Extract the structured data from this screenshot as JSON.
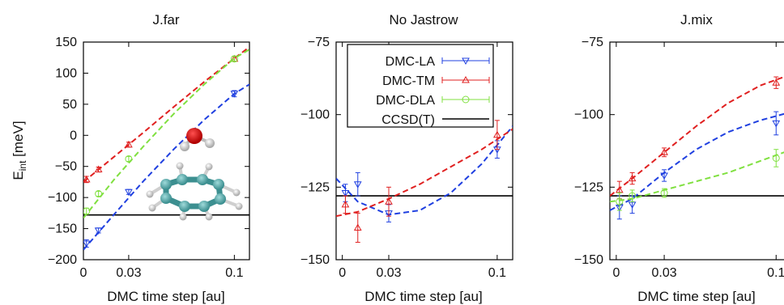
{
  "colors": {
    "la": "#2040e0",
    "tm": "#e02020",
    "dla": "#80e040",
    "ccsd": "#000000"
  },
  "chart_data": [
    {
      "type": "line",
      "title": "J.far",
      "xlabel": "DMC time step [au]",
      "ylabel_main": "E",
      "ylabel_sub": "int",
      "ylabel_unit": " [meV]",
      "xlim": [
        0,
        0.11
      ],
      "ylim": [
        -200,
        150
      ],
      "xticks": [
        0,
        0.03,
        0.1
      ],
      "xtick_labels": [
        "0",
        "0.03",
        "0.1"
      ],
      "yticks": [
        -200,
        -150,
        -100,
        -50,
        0,
        50,
        100,
        150
      ],
      "ytick_labels": [
        "-200",
        "-150",
        "-100",
        "-50",
        "0",
        "50",
        "100",
        "150"
      ],
      "reference": -128,
      "inset": "water-benzene-molecule",
      "series": [
        {
          "key": "la",
          "points": [
            {
              "x": 0.002,
              "y": -174,
              "err": 6
            },
            {
              "x": 0.01,
              "y": -153,
              "err": 4
            },
            {
              "x": 0.03,
              "y": -91,
              "err": 4
            },
            {
              "x": 0.1,
              "y": 67,
              "err": 5
            }
          ],
          "fit": [
            [
              0,
              -184
            ],
            [
              0.02,
              -128
            ],
            [
              0.04,
              -73
            ],
            [
              0.06,
              -22
            ],
            [
              0.08,
              25
            ],
            [
              0.1,
              67
            ],
            [
              0.11,
              82
            ]
          ]
        },
        {
          "key": "tm",
          "points": [
            {
              "x": 0.002,
              "y": -71,
              "err": 5
            },
            {
              "x": 0.01,
              "y": -55,
              "err": 4
            },
            {
              "x": 0.03,
              "y": -15,
              "err": 4
            },
            {
              "x": 0.1,
              "y": 123,
              "err": 4
            }
          ],
          "fit": [
            [
              0,
              -75
            ],
            [
              0.02,
              -35
            ],
            [
              0.04,
              5
            ],
            [
              0.06,
              46
            ],
            [
              0.08,
              86
            ],
            [
              0.1,
              124
            ],
            [
              0.11,
              142
            ]
          ]
        },
        {
          "key": "dla",
          "points": [
            {
              "x": 0.002,
              "y": -122,
              "err": 5
            },
            {
              "x": 0.01,
              "y": -94,
              "err": 4
            },
            {
              "x": 0.03,
              "y": -38,
              "err": 4
            },
            {
              "x": 0.1,
              "y": 123,
              "err": 4
            }
          ],
          "fit": [
            [
              0,
              -133
            ],
            [
              0.02,
              -72
            ],
            [
              0.04,
              -17
            ],
            [
              0.06,
              35
            ],
            [
              0.08,
              82
            ],
            [
              0.1,
              124
            ],
            [
              0.11,
              138
            ]
          ]
        }
      ]
    },
    {
      "type": "line",
      "title": "No Jastrow",
      "xlabel": "DMC time step [au]",
      "xlim": [
        -0.004,
        0.11
      ],
      "ylim": [
        -150,
        -75
      ],
      "xticks": [
        0,
        0.03,
        0.1
      ],
      "xtick_labels": [
        "0",
        "0.03",
        "0.1"
      ],
      "yticks": [
        -150,
        -125,
        -100,
        -75
      ],
      "ytick_labels": [
        "-150",
        "-125",
        "-100",
        "-75"
      ],
      "reference": -128,
      "legend": {
        "position": "top-left",
        "entries": [
          {
            "key": "la",
            "label": "DMC-LA"
          },
          {
            "key": "tm",
            "label": "DMC-TM"
          },
          {
            "key": "dla",
            "label": "DMC-DLA"
          },
          {
            "key": "ccsd",
            "label": "CCSD(T)"
          }
        ]
      },
      "series": [
        {
          "key": "la",
          "points": [
            {
              "x": 0.002,
              "y": -127,
              "err": 3
            },
            {
              "x": 0.01,
              "y": -124,
              "err": 4
            },
            {
              "x": 0.03,
              "y": -134,
              "err": 3
            },
            {
              "x": 0.1,
              "y": -112,
              "err": 3
            }
          ],
          "fit": [
            [
              -0.004,
              -122
            ],
            [
              0.01,
              -130
            ],
            [
              0.03,
              -134.5
            ],
            [
              0.05,
              -133
            ],
            [
              0.07,
              -127
            ],
            [
              0.09,
              -117
            ],
            [
              0.11,
              -104
            ]
          ]
        },
        {
          "key": "tm",
          "points": [
            {
              "x": 0.002,
              "y": -131,
              "err": 3
            },
            {
              "x": 0.01,
              "y": -139,
              "err": 5
            },
            {
              "x": 0.03,
              "y": -130,
              "err": 5
            },
            {
              "x": 0.1,
              "y": -107,
              "err": 5
            }
          ],
          "fit": [
            [
              -0.004,
              -135
            ],
            [
              0.01,
              -133.5
            ],
            [
              0.03,
              -129
            ],
            [
              0.05,
              -124
            ],
            [
              0.07,
              -118
            ],
            [
              0.09,
              -112
            ],
            [
              0.11,
              -105
            ]
          ]
        }
      ]
    },
    {
      "type": "line",
      "title": "J.mix",
      "xlabel": "DMC time step [au]",
      "xlim": [
        -0.004,
        0.11
      ],
      "ylim": [
        -150,
        -75
      ],
      "xticks": [
        0,
        0.03,
        0.1
      ],
      "xtick_labels": [
        "0",
        "0.03",
        "0.1"
      ],
      "yticks": [
        -150,
        -125,
        -100,
        -75
      ],
      "ytick_labels": [
        "-150",
        "-125",
        "-100",
        "-75"
      ],
      "reference": -128,
      "series": [
        {
          "key": "la",
          "points": [
            {
              "x": 0.002,
              "y": -132,
              "err": 4
            },
            {
              "x": 0.01,
              "y": -131,
              "err": 3
            },
            {
              "x": 0.03,
              "y": -121,
              "err": 2
            },
            {
              "x": 0.1,
              "y": -103,
              "err": 4
            }
          ],
          "fit": [
            [
              -0.004,
              -133
            ],
            [
              0.01,
              -129
            ],
            [
              0.03,
              -120
            ],
            [
              0.05,
              -112
            ],
            [
              0.07,
              -106
            ],
            [
              0.09,
              -102
            ],
            [
              0.11,
              -99
            ]
          ]
        },
        {
          "key": "tm",
          "points": [
            {
              "x": 0.002,
              "y": -126,
              "err": 3
            },
            {
              "x": 0.01,
              "y": -122,
              "err": 2
            },
            {
              "x": 0.03,
              "y": -113,
              "err": 1.5
            },
            {
              "x": 0.1,
              "y": -89,
              "err": 2
            }
          ],
          "fit": [
            [
              -0.004,
              -128
            ],
            [
              0.01,
              -122
            ],
            [
              0.03,
              -113
            ],
            [
              0.05,
              -104
            ],
            [
              0.07,
              -96
            ],
            [
              0.09,
              -90
            ],
            [
              0.11,
              -86
            ]
          ]
        },
        {
          "key": "dla",
          "points": [
            {
              "x": 0.002,
              "y": -130,
              "err": 3
            },
            {
              "x": 0.01,
              "y": -128,
              "err": 2
            },
            {
              "x": 0.03,
              "y": -127,
              "err": 1.5
            },
            {
              "x": 0.1,
              "y": -115,
              "err": 3
            }
          ],
          "fit": [
            [
              -0.004,
              -130
            ],
            [
              0.01,
              -129
            ],
            [
              0.03,
              -126
            ],
            [
              0.05,
              -123
            ],
            [
              0.07,
              -120
            ],
            [
              0.09,
              -116
            ],
            [
              0.11,
              -112
            ]
          ]
        }
      ]
    }
  ]
}
